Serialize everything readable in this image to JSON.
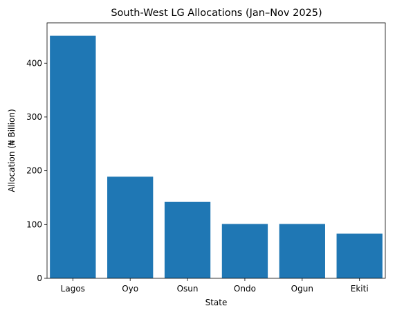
{
  "chart_data": {
    "type": "bar",
    "title": "South-West LG Allocations (Jan–Nov 2025)",
    "xlabel": "State",
    "ylabel": "Allocation (₦ Billion)",
    "categories": [
      "Lagos",
      "Oyo",
      "Osun",
      "Ondo",
      "Ogun",
      "Ekiti"
    ],
    "values": [
      451,
      189,
      142,
      101,
      101,
      83
    ],
    "ylim": [
      0,
      475
    ],
    "yticks": [
      0,
      100,
      200,
      300,
      400
    ],
    "bar_color": "#1f77b4",
    "grid": false,
    "legend": "none"
  }
}
